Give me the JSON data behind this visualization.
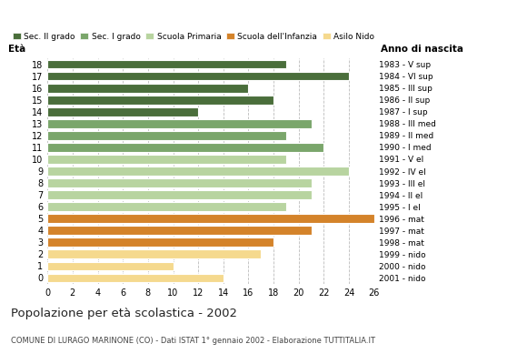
{
  "ages": [
    18,
    17,
    16,
    15,
    14,
    13,
    12,
    11,
    10,
    9,
    8,
    7,
    6,
    5,
    4,
    3,
    2,
    1,
    0
  ],
  "values": [
    19,
    24,
    16,
    18,
    12,
    21,
    19,
    22,
    19,
    24,
    21,
    21,
    19,
    26,
    21,
    18,
    17,
    10,
    14
  ],
  "right_labels": [
    "1983 - V sup",
    "1984 - VI sup",
    "1985 - III sup",
    "1986 - II sup",
    "1987 - I sup",
    "1988 - III med",
    "1989 - II med",
    "1990 - I med",
    "1991 - V el",
    "1992 - IV el",
    "1993 - III el",
    "1994 - II el",
    "1995 - I el",
    "1996 - mat",
    "1997 - mat",
    "1998 - mat",
    "1999 - nido",
    "2000 - nido",
    "2001 - nido"
  ],
  "categories": [
    "Sec. II grado",
    "Sec. I grado",
    "Scuola Primaria",
    "Scuola dell'Infanzia",
    "Asilo Nido"
  ],
  "colors": {
    "Sec. II grado": "#4a6e3b",
    "Sec. I grado": "#7aa66b",
    "Scuola Primaria": "#b8d4a0",
    "Scuola dell'Infanzia": "#d4832a",
    "Asilo Nido": "#f5d98e"
  },
  "bar_colors": [
    "#4a6e3b",
    "#4a6e3b",
    "#4a6e3b",
    "#4a6e3b",
    "#4a6e3b",
    "#7aa66b",
    "#7aa66b",
    "#7aa66b",
    "#b8d4a0",
    "#b8d4a0",
    "#b8d4a0",
    "#b8d4a0",
    "#b8d4a0",
    "#d4832a",
    "#d4832a",
    "#d4832a",
    "#f5d98e",
    "#f5d98e",
    "#f5d98e"
  ],
  "title": "Popolazione per età scolastica - 2002",
  "subtitle": "COMUNE DI LURAGO MARINONE (CO) - Dati ISTAT 1° gennaio 2002 - Elaborazione TUTTITALIA.IT",
  "xlabel_left": "Età",
  "xlabel_right": "Anno di nascita",
  "xlim": [
    0,
    26
  ],
  "xticks": [
    0,
    2,
    4,
    6,
    8,
    10,
    12,
    14,
    16,
    18,
    20,
    22,
    24,
    26
  ],
  "background_color": "#ffffff",
  "grid_color": "#bbbbbb"
}
